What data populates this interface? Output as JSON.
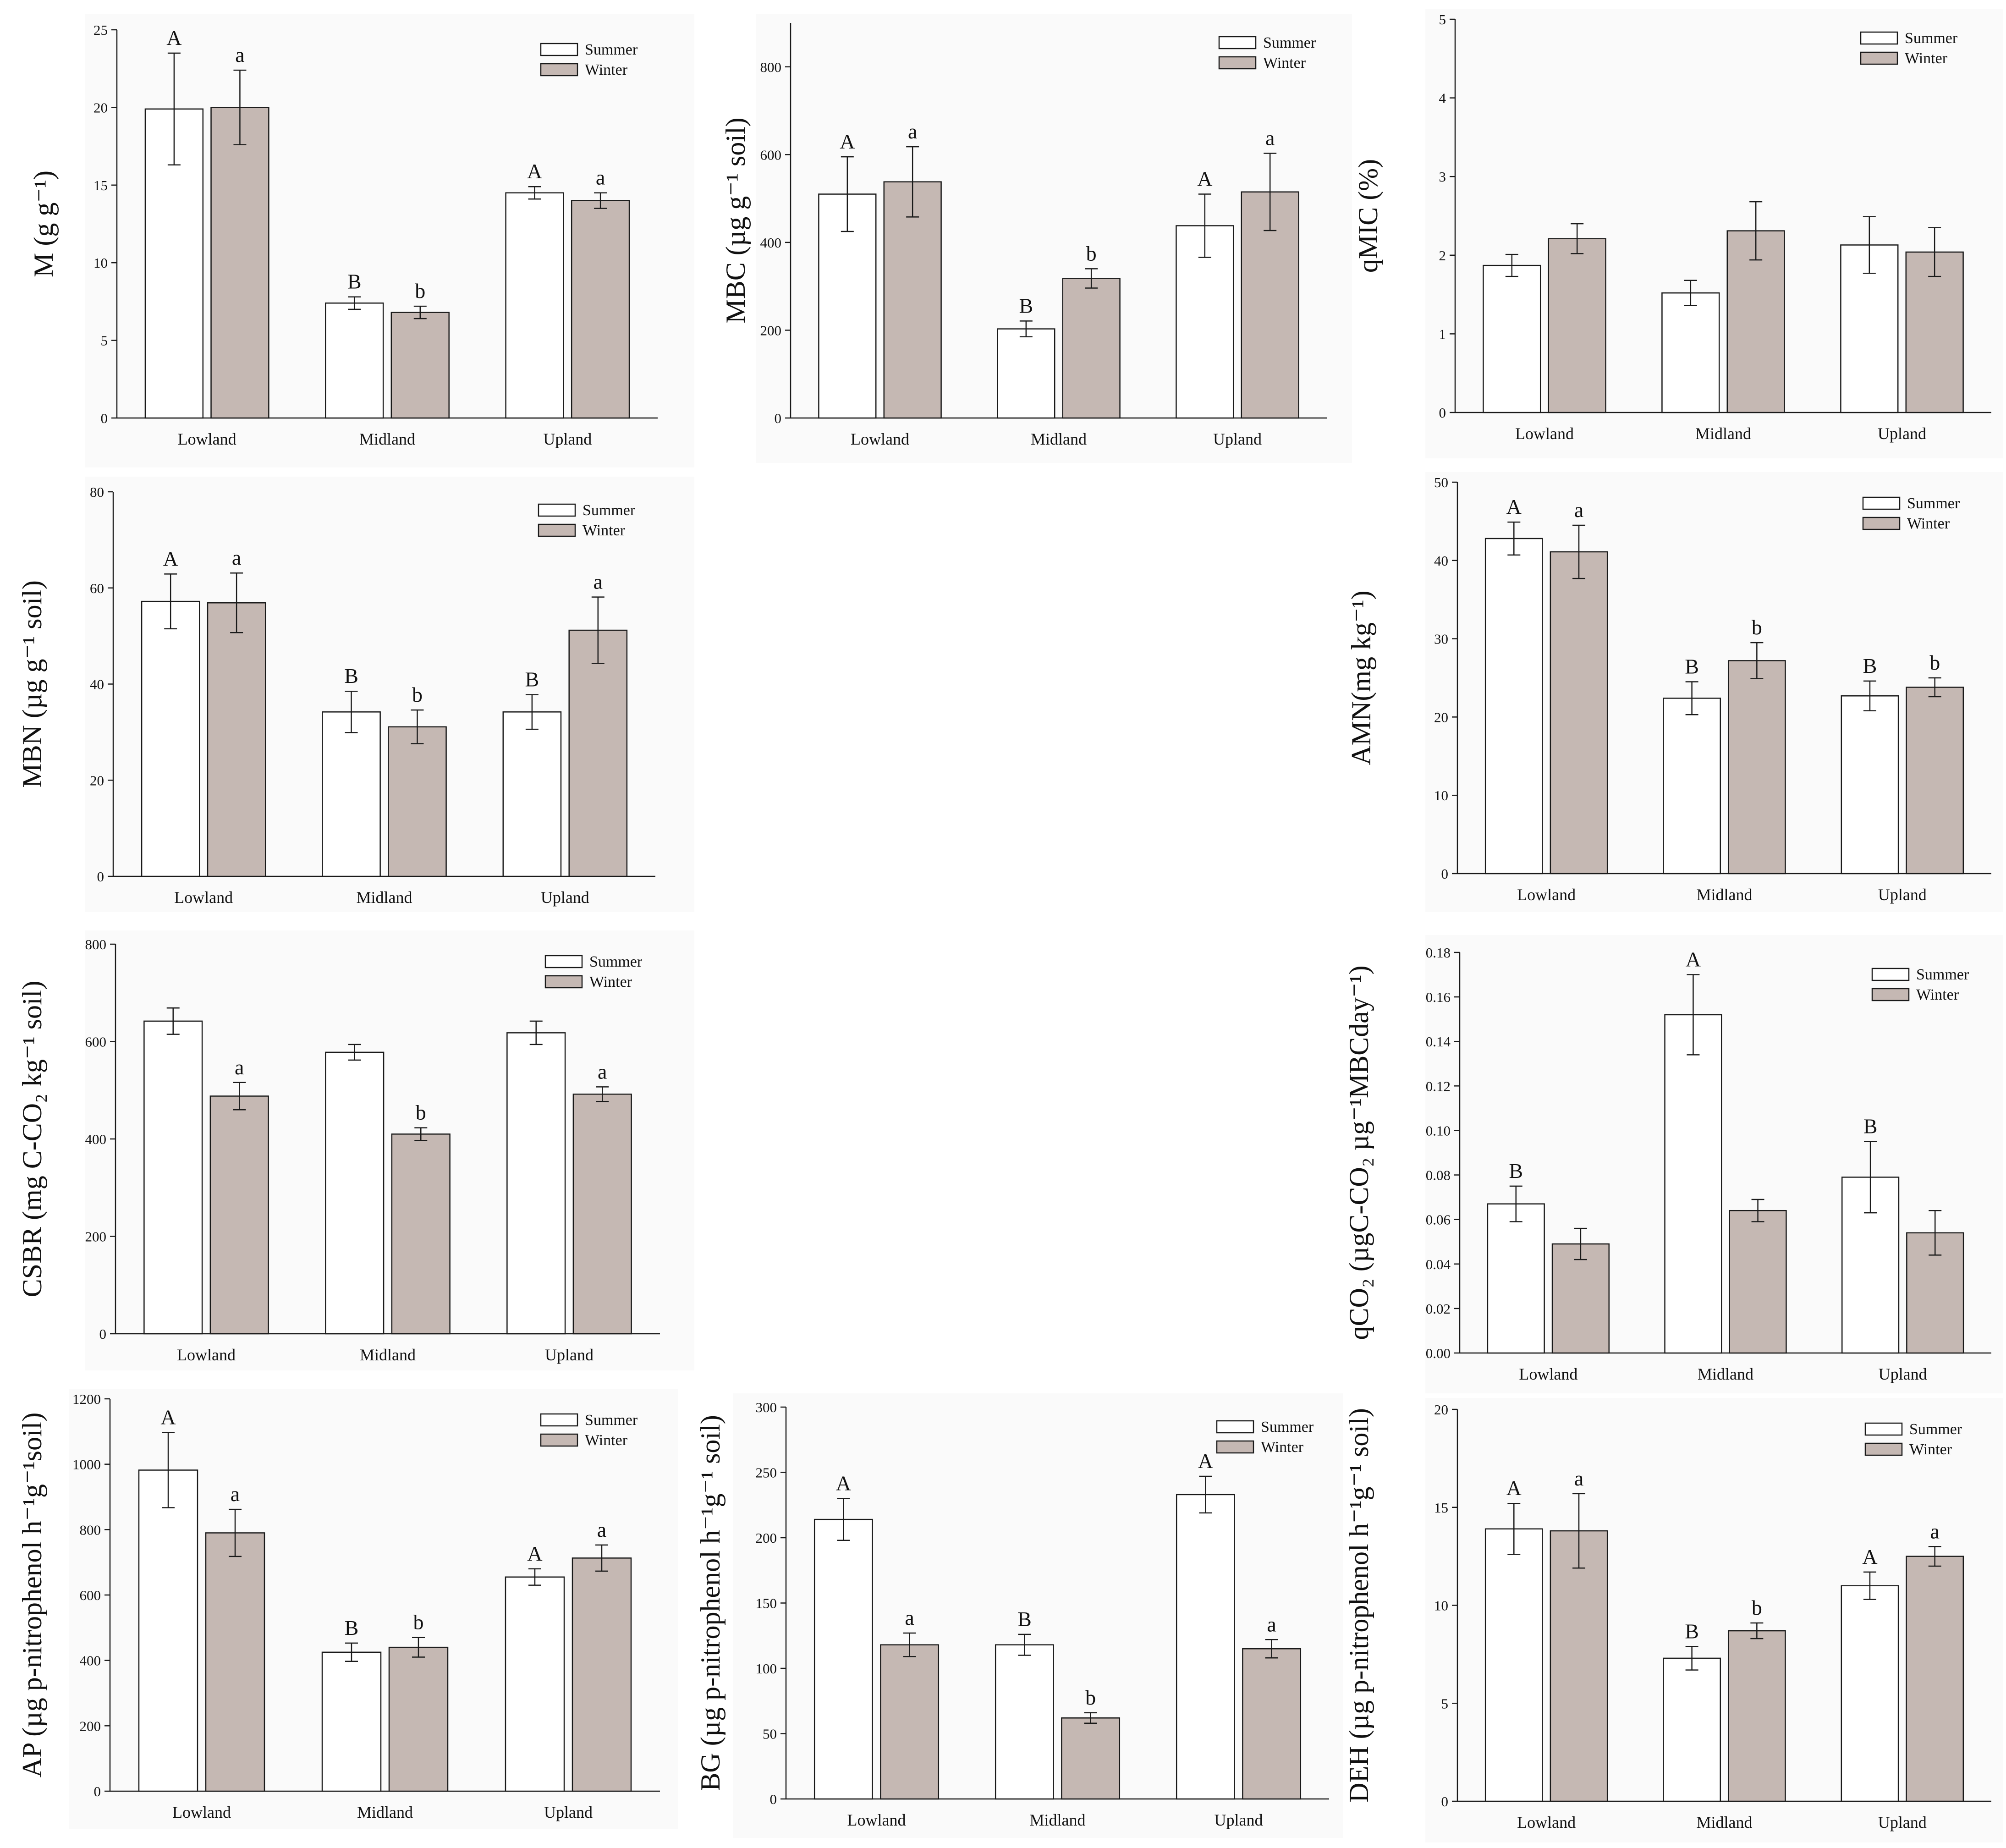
{
  "colors": {
    "summer": "#ffffff",
    "winter": "#c5b8b3",
    "stroke": "#1a1a1a"
  },
  "legend": {
    "summer": "Summer",
    "winter": "Winter"
  },
  "chart_data": [
    {
      "id": "M",
      "type": "bar",
      "ylabel": "M (g g⁻¹)",
      "ylim": [
        0,
        25
      ],
      "yticks": [
        0,
        5,
        10,
        15,
        20,
        25
      ],
      "categories": [
        "Lowland",
        "Midland",
        "Upland"
      ],
      "series": [
        {
          "name": "Summer",
          "values": [
            19.9,
            7.4,
            14.5
          ],
          "errors": [
            3.6,
            0.4,
            0.4
          ],
          "labels": [
            "A",
            "B",
            "A"
          ]
        },
        {
          "name": "Winter",
          "values": [
            20.0,
            6.8,
            14.0
          ],
          "errors": [
            2.4,
            0.4,
            0.5
          ],
          "labels": [
            "a",
            "b",
            "a"
          ]
        }
      ],
      "legend_position": "top-right"
    },
    {
      "id": "MBC",
      "type": "bar",
      "ylabel": "MBC (µg g⁻¹ soil)",
      "ylim": [
        0,
        900
      ],
      "yticks": [
        0,
        200,
        400,
        600,
        800
      ],
      "categories": [
        "Lowland",
        "Midland",
        "Upland"
      ],
      "series": [
        {
          "name": "Summer",
          "values": [
            510,
            203,
            438
          ],
          "errors": [
            85,
            18,
            72
          ],
          "labels": [
            "A",
            "B",
            "A"
          ]
        },
        {
          "name": "Winter",
          "values": [
            538,
            318,
            515
          ],
          "errors": [
            80,
            22,
            88
          ],
          "labels": [
            "a",
            "b",
            "a"
          ]
        }
      ],
      "legend_position": "top-right"
    },
    {
      "id": "qMIC",
      "type": "bar",
      "ylabel": "qMIC (%)",
      "ylim": [
        0,
        5
      ],
      "yticks": [
        0,
        1,
        2,
        3,
        4,
        5
      ],
      "categories": [
        "Lowland",
        "Midland",
        "Upland"
      ],
      "series": [
        {
          "name": "Summer",
          "values": [
            1.87,
            1.52,
            2.13
          ],
          "errors": [
            0.14,
            0.16,
            0.36
          ],
          "labels": [
            "",
            "",
            ""
          ]
        },
        {
          "name": "Winter",
          "values": [
            2.21,
            2.31,
            2.04
          ],
          "errors": [
            0.19,
            0.37,
            0.31
          ],
          "labels": [
            "",
            "",
            ""
          ]
        }
      ],
      "legend_position": "top-right"
    },
    {
      "id": "MBN",
      "type": "bar",
      "ylabel": "MBN (µg g⁻¹ soil)",
      "ylim": [
        0,
        80
      ],
      "yticks": [
        0,
        20,
        40,
        60,
        80
      ],
      "categories": [
        "Lowland",
        "Midland",
        "Upland"
      ],
      "series": [
        {
          "name": "Summer",
          "values": [
            57.2,
            34.2,
            34.2
          ],
          "errors": [
            5.7,
            4.3,
            3.6
          ],
          "labels": [
            "A",
            "B",
            "B"
          ]
        },
        {
          "name": "Winter",
          "values": [
            56.9,
            31.1,
            51.2
          ],
          "errors": [
            6.2,
            3.5,
            6.9
          ],
          "labels": [
            "a",
            "b",
            "a"
          ]
        }
      ],
      "legend_position": "top-right"
    },
    {
      "id": "AMN",
      "type": "bar",
      "ylabel": "AMN(mg kg⁻¹)",
      "ylim": [
        0,
        50
      ],
      "yticks": [
        0,
        10,
        20,
        30,
        40,
        50
      ],
      "categories": [
        "Lowland",
        "Midland",
        "Upland"
      ],
      "series": [
        {
          "name": "Summer",
          "values": [
            42.8,
            22.4,
            22.7
          ],
          "errors": [
            2.1,
            2.1,
            1.9
          ],
          "labels": [
            "A",
            "B",
            "B"
          ]
        },
        {
          "name": "Winter",
          "values": [
            41.1,
            27.2,
            23.8
          ],
          "errors": [
            3.4,
            2.3,
            1.2
          ],
          "labels": [
            "a",
            "b",
            "b"
          ]
        }
      ],
      "legend_position": "top-right"
    },
    {
      "id": "CSBR",
      "type": "bar",
      "ylabel": "CSBR (mg C-CO₂ kg⁻¹ soil)",
      "ylim": [
        0,
        800
      ],
      "yticks": [
        0,
        200,
        400,
        600,
        800
      ],
      "categories": [
        "Lowland",
        "Midland",
        "Upland"
      ],
      "series": [
        {
          "name": "Summer",
          "values": [
            642,
            578,
            618
          ],
          "errors": [
            27,
            16,
            24
          ],
          "labels": [
            "",
            "",
            ""
          ]
        },
        {
          "name": "Winter",
          "values": [
            488,
            410,
            492
          ],
          "errors": [
            28,
            13,
            15
          ],
          "labels": [
            "a",
            "b",
            "a"
          ]
        }
      ],
      "legend_position": "top-right"
    },
    {
      "id": "qCO2",
      "type": "bar",
      "ylabel": "qCO₂ (µgC-CO₂ µg⁻¹MBCday⁻¹)",
      "ylim": [
        0,
        0.18
      ],
      "yticks": [
        0,
        0.02,
        0.04,
        0.06,
        0.08,
        0.1,
        0.12,
        0.14,
        0.16,
        0.18
      ],
      "tick_decimals": 2,
      "categories": [
        "Lowland",
        "Midland",
        "Upland"
      ],
      "series": [
        {
          "name": "Summer",
          "values": [
            0.067,
            0.152,
            0.079
          ],
          "errors": [
            0.008,
            0.018,
            0.016
          ],
          "labels": [
            "B",
            "A",
            "B"
          ]
        },
        {
          "name": "Winter",
          "values": [
            0.049,
            0.064,
            0.054
          ],
          "errors": [
            0.007,
            0.005,
            0.01
          ],
          "labels": [
            "",
            "",
            ""
          ]
        }
      ],
      "legend_position": "top-right"
    },
    {
      "id": "AP",
      "type": "bar",
      "ylabel": "AP (µg p-nitrophenol h⁻¹g⁻¹soil)",
      "ylim": [
        0,
        1200
      ],
      "yticks": [
        0,
        200,
        400,
        600,
        800,
        1000,
        1200
      ],
      "categories": [
        "Lowland",
        "Midland",
        "Upland"
      ],
      "series": [
        {
          "name": "Summer",
          "values": [
            982,
            425,
            655
          ],
          "errors": [
            115,
            28,
            25
          ],
          "labels": [
            "A",
            "B",
            "A"
          ]
        },
        {
          "name": "Winter",
          "values": [
            790,
            440,
            713
          ],
          "errors": [
            72,
            30,
            40
          ],
          "labels": [
            "a",
            "b",
            "a"
          ]
        }
      ],
      "legend_position": "top-right"
    },
    {
      "id": "BG",
      "type": "bar",
      "ylabel": "BG (µg p-nitrophenol h⁻¹g⁻¹ soil)",
      "ylim": [
        0,
        300
      ],
      "yticks": [
        0,
        50,
        100,
        150,
        200,
        250,
        300
      ],
      "categories": [
        "Lowland",
        "Midland",
        "Upland"
      ],
      "series": [
        {
          "name": "Summer",
          "values": [
            214,
            118,
            233
          ],
          "errors": [
            16,
            8,
            14
          ],
          "labels": [
            "A",
            "B",
            "A"
          ]
        },
        {
          "name": "Winter",
          "values": [
            118,
            62,
            115
          ],
          "errors": [
            9,
            4,
            7
          ],
          "labels": [
            "a",
            "b",
            "a"
          ]
        }
      ],
      "legend_position": "top-right"
    },
    {
      "id": "DEH",
      "type": "bar",
      "ylabel": "DEH (µg p-nitrophenol h⁻¹g⁻¹ soil)",
      "ylim": [
        0,
        20
      ],
      "yticks": [
        0,
        5,
        10,
        15,
        20
      ],
      "categories": [
        "Lowland",
        "Midland",
        "Upland"
      ],
      "series": [
        {
          "name": "Summer",
          "values": [
            13.9,
            7.3,
            11.0
          ],
          "errors": [
            1.3,
            0.6,
            0.7
          ],
          "labels": [
            "A",
            "B",
            "A"
          ]
        },
        {
          "name": "Winter",
          "values": [
            13.8,
            8.7,
            12.5
          ],
          "errors": [
            1.9,
            0.4,
            0.5
          ],
          "labels": [
            "a",
            "b",
            "a"
          ]
        }
      ],
      "legend_position": "top-right"
    }
  ]
}
